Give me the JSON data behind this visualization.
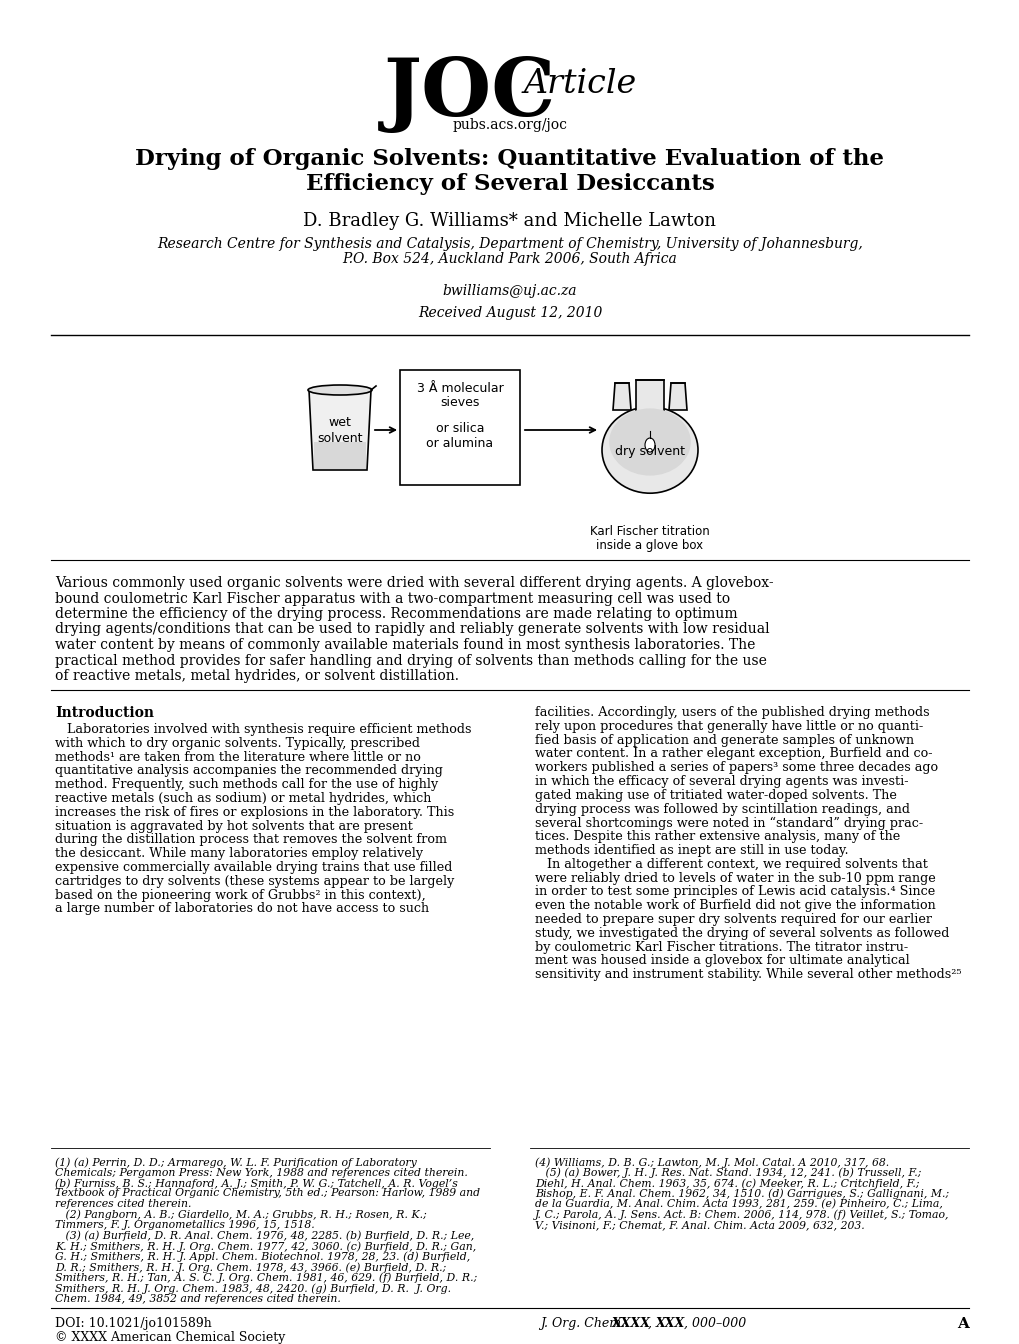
{
  "bg_color": "#ffffff",
  "journal_logo_joc": "JOC",
  "journal_logo_article": "Article",
  "journal_url": "pubs.acs.org/joc",
  "title_line1": "Drying of Organic Solvents: Quantitative Evaluation of the",
  "title_line2": "Efficiency of Several Desiccants",
  "authors": "D. Bradley G. Williams* and Michelle Lawton",
  "affiliation_line1": "Research Centre for Synthesis and Catalysis, Department of Chemistry, University of Johannesburg,",
  "affiliation_line2": "P.O. Box 524, Auckland Park 2006, South Africa",
  "email": "bwilliams@uj.ac.za",
  "received": "Received August 12, 2010",
  "abstract_text": "Various commonly used organic solvents were dried with several different drying agents. A glovebox-\nbound coulometric Karl Fischer apparatus with a two-compartment measuring cell was used to\ndetermine the efficiency of the drying process. Recommendations are made relating to optimum\ndrying agents/conditions that can be used to rapidly and reliably generate solvents with low residual\nwater content by means of commonly available materials found in most synthesis laboratories. The\npractical method provides for safer handling and drying of solvents than methods calling for the use\nof reactive metals, metal hydrides, or solvent distillation.",
  "intro_heading": "Introduction",
  "intro_indent": "    ",
  "intro_text_col1": [
    "   Laboratories involved with synthesis require efficient methods",
    "with which to dry organic solvents. Typically, prescribed",
    "methods¹ are taken from the literature where little or no",
    "quantitative analysis accompanies the recommended drying",
    "method. Frequently, such methods call for the use of highly",
    "reactive metals (such as sodium) or metal hydrides, which",
    "increases the risk of fires or explosions in the laboratory. This",
    "situation is aggravated by hot solvents that are present",
    "during the distillation process that removes the solvent from",
    "the desiccant. While many laboratories employ relatively",
    "expensive commercially available drying trains that use filled",
    "cartridges to dry solvents (these systems appear to be largely",
    "based on the pioneering work of Grubbs² in this context),",
    "a large number of laboratories do not have access to such"
  ],
  "intro_text_col2": [
    "facilities. Accordingly, users of the published drying methods",
    "rely upon procedures that generally have little or no quanti-",
    "fied basis of application and generate samples of unknown",
    "water content. In a rather elegant exception, Burfield and co-",
    "workers published a series of papers³ some three decades ago",
    "in which the efficacy of several drying agents was investi-",
    "gated making use of tritiated water-doped solvents. The",
    "drying process was followed by scintillation readings, and",
    "several shortcomings were noted in “standard” drying prac-",
    "tices. Despite this rather extensive analysis, many of the",
    "methods identified as inept are still in use today.",
    "   In altogether a different context, we required solvents that",
    "were reliably dried to levels of water in the sub-10 ppm range",
    "in order to test some principles of Lewis acid catalysis.⁴ Since",
    "even the notable work of Burfield did not give the information",
    "needed to prepare super dry solvents required for our earlier",
    "study, we investigated the drying of several solvents as followed",
    "by coulometric Karl Fischer titrations. The titrator instru-",
    "ment was housed inside a glovebox for ultimate analytical",
    "sensitivity and instrument stability. While several other methods²⁵"
  ],
  "footnote_col1": [
    "(1) (a) Perrin, D. D.; Armarego, W. L. F. Purification of Laboratory",
    "Chemicals; Pergamon Press: New York, 1988 and references cited therein.",
    "(b) Furniss, B. S.; Hannaford, A. J.; Smith, P. W. G.; Tatchell, A. R. Vogel’s",
    "Textbook of Practical Organic Chemistry, 5th ed.; Pearson: Harlow, 1989 and",
    "references cited therein.",
    "   (2) Pangborn, A. B.; Giardello, M. A.; Grubbs, R. H.; Rosen, R. K.;",
    "Timmers, F. J. Organometallics 1996, 15, 1518.",
    "   (3) (a) Burfield, D. R. Anal. Chem. 1976, 48, 2285. (b) Burfield, D. R.; Lee,",
    "K. H.; Smithers, R. H. J. Org. Chem. 1977, 42, 3060. (c) Burfield, D. R.; Gan,",
    "G. H.; Smithers, R. H. J. Appl. Chem. Biotechnol. 1978, 28, 23. (d) Burfield,",
    "D. R.; Smithers, R. H. J. Org. Chem. 1978, 43, 3966. (e) Burfield, D. R.;",
    "Smithers, R. H.; Tan, A. S. C. J. Org. Chem. 1981, 46, 629. (f) Burfield, D. R.;",
    "Smithers, R. H. J. Org. Chem. 1983, 48, 2420. (g) Burfield, D. R.  J. Org.",
    "Chem. 1984, 49, 3852 and references cited therein."
  ],
  "footnote_col2": [
    "(4) Williams, D. B. G.; Lawton, M. J. Mol. Catal. A 2010, 317, 68.",
    "   (5) (a) Bower, J. H. J. Res. Nat. Stand. 1934, 12, 241. (b) Trussell, F.;",
    "Diehl, H. Anal. Chem. 1963, 35, 674. (c) Meeker, R. L.; Critchfield, F.;",
    "Bishop, E. F. Anal. Chem. 1962, 34, 1510. (d) Garrigues, S.; Gallignani, M.;",
    "de la Guardia, M. Anal. Chim. Acta 1993, 281, 259. (e) Pinheiro, C.; Lima,",
    "J. C.; Parola, A. J. Sens. Act. B: Chem. 2006, 114, 978. (f) Veillet, S.; Tomao,",
    "V.; Visinoni, F.; Chemat, F. Anal. Chim. Acta 2009, 632, 203."
  ],
  "doi": "DOI: 10.1021/jo101589h",
  "copyright": "© XXXX American Chemical Society",
  "journal_ref_italic": "J. Org. Chem. ",
  "journal_ref_bold": "XXXX",
  "journal_ref_italic2": ", ",
  "journal_ref_bold2": "XXX",
  "journal_ref_rest": ", 000–000",
  "page_letter": "A"
}
